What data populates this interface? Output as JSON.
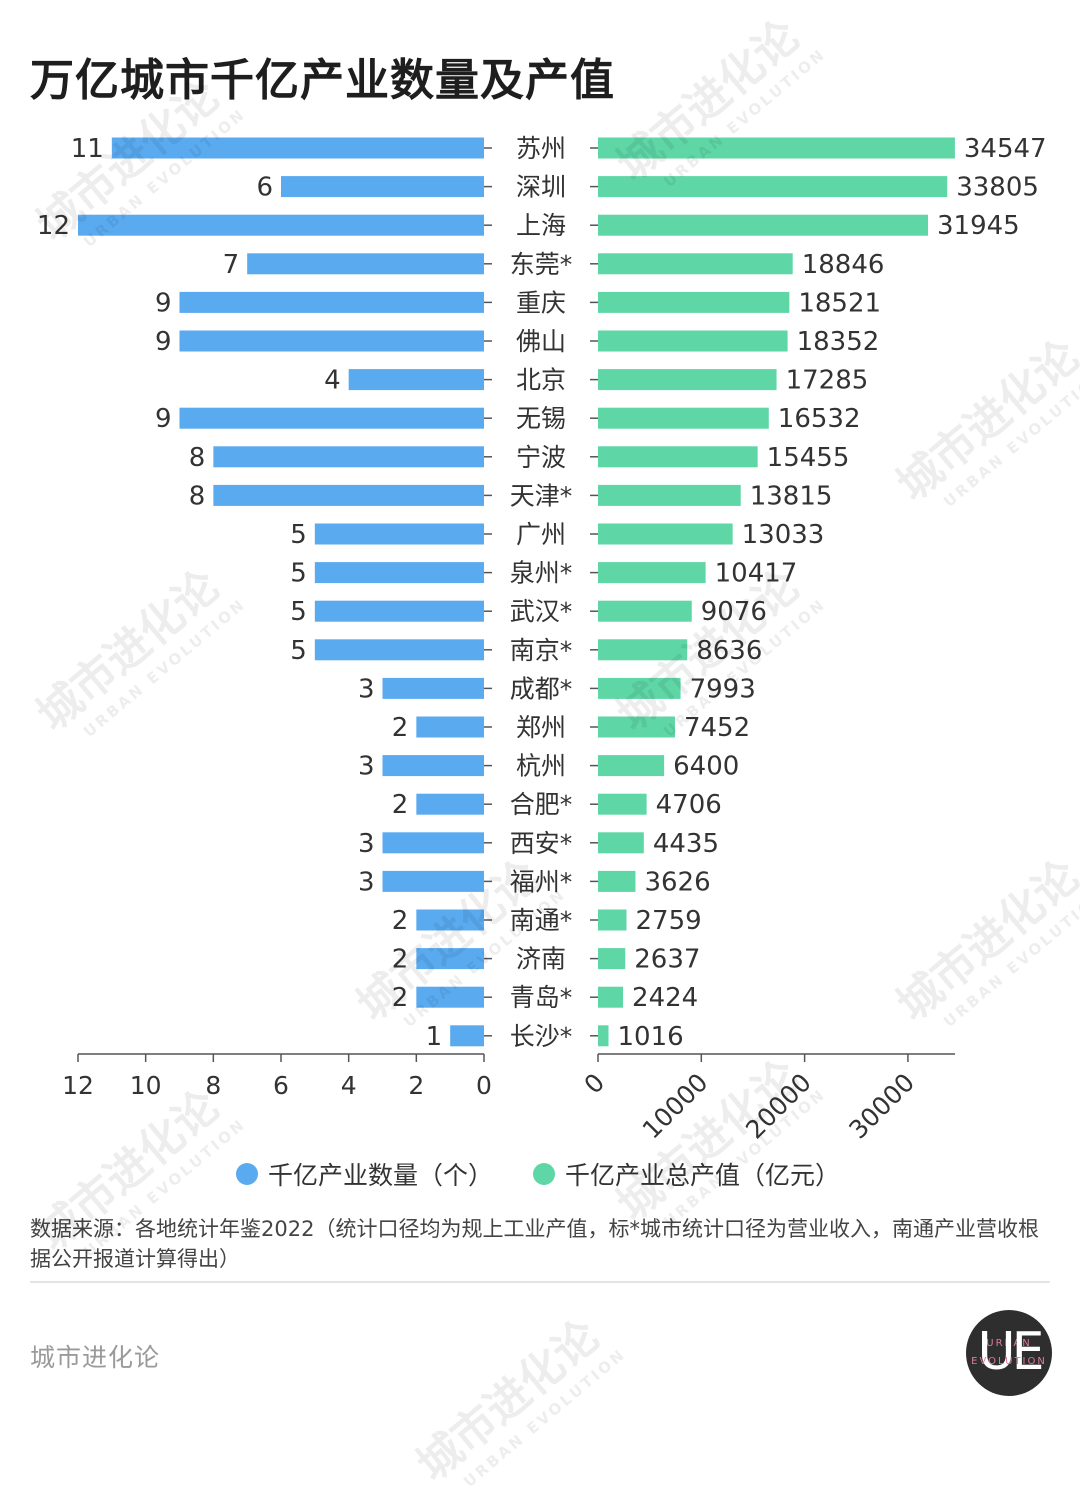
{
  "title": "万亿城市千亿产业数量及产值",
  "chart_data": {
    "type": "bar",
    "orientation": "horizontal",
    "layout": "back-to-back",
    "categories": [
      "苏州",
      "深圳",
      "上海",
      "东莞*",
      "重庆",
      "佛山",
      "北京",
      "无锡",
      "宁波",
      "天津*",
      "广州",
      "泉州*",
      "武汉*",
      "南京*",
      "成都*",
      "郑州",
      "杭州",
      "合肥*",
      "西安*",
      "福州*",
      "南通*",
      "济南",
      "青岛*",
      "长沙*"
    ],
    "series": [
      {
        "name": "千亿产业数量（个）",
        "color": "#5aaaf0",
        "values": [
          11,
          6,
          12,
          7,
          9,
          9,
          4,
          9,
          8,
          8,
          5,
          5,
          5,
          5,
          3,
          2,
          3,
          2,
          3,
          3,
          2,
          2,
          2,
          1
        ],
        "xlim": [
          12,
          0
        ],
        "ticks": [
          "12",
          "10",
          "8",
          "6",
          "4",
          "2",
          "0"
        ]
      },
      {
        "name": "千亿产业总产值（亿元）",
        "color": "#5ed6a6",
        "values": [
          34547,
          33805,
          31945,
          18846,
          18521,
          18352,
          17285,
          16532,
          15455,
          13815,
          13033,
          10417,
          9076,
          8636,
          7993,
          7452,
          6400,
          4706,
          4435,
          3626,
          2759,
          2637,
          2424,
          1016
        ],
        "xlim": [
          0,
          34547
        ],
        "ticks": [
          "0",
          "10000",
          "20000",
          "30000"
        ]
      }
    ]
  },
  "footer": {
    "source": "数据来源：各地统计年鉴2022（统计口径均为规上工业产值，标*城市统计口径为营业收入，南通产业营收根据公开报道计算得出）",
    "brand": "城市进化论"
  },
  "logo": {
    "letters": "UE",
    "text_top": "URBAN",
    "text_bottom": "EVOLUTION"
  },
  "watermark": {
    "cn": "城市进化论",
    "en": "URBAN EVOLUTION"
  }
}
